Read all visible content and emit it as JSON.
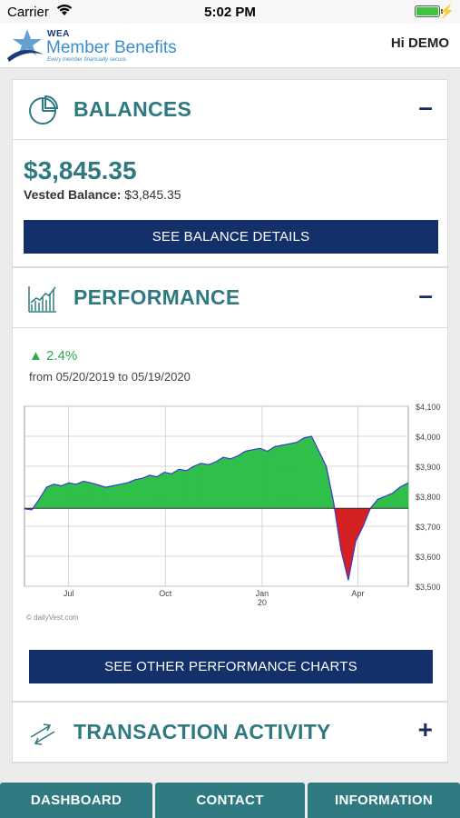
{
  "status_bar": {
    "carrier": "Carrier",
    "time": "5:02 PM"
  },
  "header": {
    "logo_wea": "WEA",
    "logo_name": "Member Benefits",
    "logo_tagline": "Every member financially secure.",
    "greeting": "Hi DEMO"
  },
  "balances": {
    "title": "BALANCES",
    "toggle": "–",
    "amount": "$3,845.35",
    "vested_label": "Vested Balance:",
    "vested_value": " $3,845.35",
    "button": "SEE BALANCE DETAILS"
  },
  "performance": {
    "title": "PERFORMANCE",
    "toggle": "–",
    "change": "▲ 2.4%",
    "range": "from 05/20/2019 to 05/19/2020",
    "button": "SEE OTHER PERFORMANCE CHARTS",
    "credit": "dailyVest.com"
  },
  "transactions": {
    "title": "TRANSACTION ACTIVITY",
    "toggle": "+"
  },
  "tabs": [
    "DASHBOARD",
    "CONTACT",
    "INFORMATION"
  ],
  "colors": {
    "brand_teal": "#2e7a80",
    "navy": "#13306b",
    "gain": "#2fbf4a",
    "loss": "#d42020"
  },
  "chart_data": {
    "type": "area",
    "baseline": 3760,
    "ylim": [
      3500,
      4100
    ],
    "y_ticks": [
      "$4,100",
      "$4,000",
      "$3,900",
      "$3,800",
      "$3,700",
      "$3,600",
      "$3,500"
    ],
    "x_ticks": [
      "Jul",
      "Oct",
      "Jan",
      "Apr"
    ],
    "x_tick_sub": [
      "",
      "",
      "20",
      ""
    ],
    "x": [
      "2019-05-20",
      "2019-05-27",
      "2019-06-03",
      "2019-06-10",
      "2019-06-17",
      "2019-06-24",
      "2019-07-01",
      "2019-07-08",
      "2019-07-15",
      "2019-07-22",
      "2019-07-29",
      "2019-08-05",
      "2019-08-12",
      "2019-08-19",
      "2019-08-26",
      "2019-09-02",
      "2019-09-09",
      "2019-09-16",
      "2019-09-23",
      "2019-09-30",
      "2019-10-07",
      "2019-10-14",
      "2019-10-21",
      "2019-10-28",
      "2019-11-04",
      "2019-11-11",
      "2019-11-18",
      "2019-11-25",
      "2019-12-02",
      "2019-12-09",
      "2019-12-16",
      "2019-12-23",
      "2019-12-30",
      "2020-01-06",
      "2020-01-13",
      "2020-01-20",
      "2020-01-27",
      "2020-02-03",
      "2020-02-10",
      "2020-02-17",
      "2020-02-24",
      "2020-03-02",
      "2020-03-09",
      "2020-03-16",
      "2020-03-23",
      "2020-03-30",
      "2020-04-06",
      "2020-04-13",
      "2020-04-20",
      "2020-04-27",
      "2020-05-04",
      "2020-05-11",
      "2020-05-19"
    ],
    "values": [
      3758,
      3755,
      3790,
      3830,
      3840,
      3835,
      3845,
      3840,
      3850,
      3845,
      3838,
      3830,
      3835,
      3840,
      3845,
      3855,
      3860,
      3870,
      3865,
      3880,
      3875,
      3890,
      3885,
      3900,
      3910,
      3905,
      3915,
      3930,
      3925,
      3935,
      3950,
      3955,
      3960,
      3950,
      3965,
      3970,
      3975,
      3980,
      3995,
      4000,
      3950,
      3900,
      3780,
      3620,
      3520,
      3650,
      3700,
      3760,
      3790,
      3800,
      3810,
      3830,
      3845
    ]
  }
}
